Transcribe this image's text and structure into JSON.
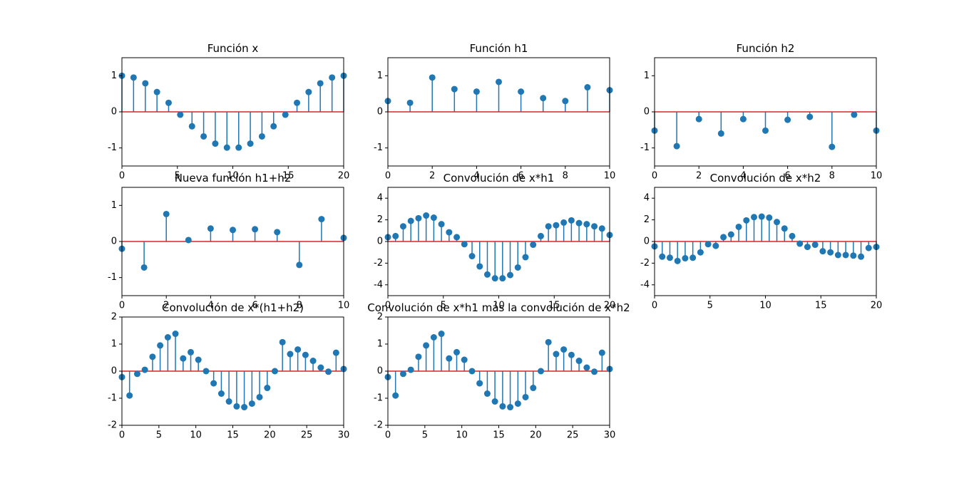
{
  "chart_data": [
    {
      "type": "stem",
      "title": "Función x",
      "color": "#1f77b4",
      "baseline_color": "#d62728",
      "x": [
        0,
        1.05,
        2.11,
        3.16,
        4.21,
        5.26,
        6.32,
        7.37,
        8.42,
        9.47,
        10.53,
        11.58,
        12.63,
        13.68,
        14.74,
        15.79,
        16.84,
        17.89,
        18.95,
        20
      ],
      "values": [
        1,
        0.95,
        0.79,
        0.55,
        0.25,
        -0.08,
        -0.4,
        -0.68,
        -0.88,
        -0.99,
        -0.99,
        -0.88,
        -0.68,
        -0.4,
        -0.08,
        0.25,
        0.55,
        0.79,
        0.95,
        1
      ],
      "xlim": [
        0,
        20
      ],
      "ylim": [
        -1.5,
        1.5
      ],
      "xticks": [
        0,
        5,
        10,
        15,
        20
      ],
      "yticks": [
        -1,
        0,
        1
      ]
    },
    {
      "type": "stem",
      "title": "Función h1",
      "color": "#1f77b4",
      "baseline_color": "#d62728",
      "x": [
        0,
        1,
        2,
        3,
        4,
        5,
        6,
        7,
        8,
        9,
        10
      ],
      "values": [
        0.3,
        0.25,
        0.95,
        0.63,
        0.56,
        0.83,
        0.56,
        0.38,
        0.3,
        0.68,
        0.6
      ],
      "xlim": [
        0,
        10
      ],
      "ylim": [
        -1.5,
        1.5
      ],
      "xticks": [
        0,
        2,
        4,
        6,
        8,
        10
      ],
      "yticks": [
        -1,
        0,
        1
      ]
    },
    {
      "type": "stem",
      "title": "Función h2",
      "color": "#1f77b4",
      "baseline_color": "#d62728",
      "x": [
        0,
        1,
        2,
        3,
        4,
        5,
        6,
        7,
        8,
        9,
        10
      ],
      "values": [
        -0.52,
        -0.95,
        -0.2,
        -0.6,
        -0.2,
        -0.52,
        -0.22,
        -0.14,
        -0.97,
        -0.08,
        -0.52
      ],
      "xlim": [
        0,
        10
      ],
      "ylim": [
        -1.5,
        1.5
      ],
      "xticks": [
        0,
        2,
        4,
        6,
        8,
        10
      ],
      "yticks": [
        -1,
        0,
        1
      ]
    },
    {
      "type": "stem",
      "title": "Nueva función h1+h2",
      "color": "#1f77b4",
      "baseline_color": "#d62728",
      "x": [
        0,
        1,
        2,
        3,
        4,
        5,
        6,
        7,
        8,
        9,
        10
      ],
      "values": [
        -0.2,
        -0.72,
        0.76,
        0.04,
        0.36,
        0.32,
        0.34,
        0.26,
        -0.65,
        0.62,
        0.1
      ],
      "xlim": [
        0,
        10
      ],
      "ylim": [
        -1.5,
        1.5
      ],
      "xticks": [
        0,
        2,
        4,
        6,
        8,
        10
      ],
      "yticks": [
        -1,
        0,
        1
      ]
    },
    {
      "type": "stem",
      "title": "Convolución de x*h1",
      "color": "#1f77b4",
      "baseline_color": "#d62728",
      "x": [
        0,
        0.69,
        1.38,
        2.07,
        2.76,
        3.45,
        4.14,
        4.83,
        5.52,
        6.21,
        6.9,
        7.59,
        8.28,
        8.97,
        9.66,
        10.34,
        11.03,
        11.72,
        12.41,
        13.1,
        13.79,
        14.48,
        15.17,
        15.86,
        16.55,
        17.24,
        17.93,
        18.62,
        19.31,
        20
      ],
      "values": [
        0.4,
        0.5,
        1.4,
        1.9,
        2.15,
        2.4,
        2.2,
        1.6,
        0.85,
        0.4,
        -0.25,
        -1.35,
        -2.3,
        -3.05,
        -3.4,
        -3.4,
        -3.1,
        -2.4,
        -1.45,
        -0.3,
        0.5,
        1.4,
        1.5,
        1.75,
        1.95,
        1.7,
        1.6,
        1.4,
        1.2,
        0.6
      ],
      "xlim": [
        0,
        20
      ],
      "ylim": [
        -5,
        5
      ],
      "xticks": [
        0,
        5,
        10,
        15,
        20
      ],
      "yticks": [
        -4,
        -2,
        0,
        2,
        4
      ]
    },
    {
      "type": "stem",
      "title": "Convolución de x*h2",
      "color": "#1f77b4",
      "baseline_color": "#d62728",
      "x": [
        0,
        0.69,
        1.38,
        2.07,
        2.76,
        3.45,
        4.14,
        4.83,
        5.52,
        6.21,
        6.9,
        7.59,
        8.28,
        8.97,
        9.66,
        10.34,
        11.03,
        11.72,
        12.41,
        13.1,
        13.79,
        14.48,
        15.17,
        15.86,
        16.55,
        17.24,
        17.93,
        18.62,
        19.31,
        20
      ],
      "values": [
        -0.45,
        -1.4,
        -1.5,
        -1.8,
        -1.55,
        -1.5,
        -1.0,
        -0.25,
        -0.4,
        0.4,
        0.65,
        1.35,
        1.95,
        2.25,
        2.3,
        2.2,
        1.8,
        1.2,
        0.5,
        -0.2,
        -0.5,
        -0.3,
        -0.9,
        -1.0,
        -1.25,
        -1.25,
        -1.3,
        -1.4,
        -0.6,
        -0.5
      ],
      "xlim": [
        0,
        20
      ],
      "ylim": [
        -5,
        5
      ],
      "xticks": [
        0,
        5,
        10,
        15,
        20
      ],
      "yticks": [
        -4,
        -2,
        0,
        2,
        4
      ]
    },
    {
      "type": "stem",
      "title": "Convolución de x*(h1+h2)",
      "color": "#1f77b4",
      "baseline_color": "#d62728",
      "x": [
        0,
        1.03,
        2.07,
        3.1,
        4.14,
        5.17,
        6.21,
        7.24,
        8.28,
        9.31,
        10.34,
        11.38,
        12.41,
        13.45,
        14.48,
        15.52,
        16.55,
        17.59,
        18.62,
        19.66,
        20.69,
        21.72,
        22.76,
        23.79,
        24.83,
        25.86,
        26.9,
        27.93,
        28.97,
        30
      ],
      "values": [
        -0.22,
        -0.9,
        -0.1,
        0.05,
        0.53,
        0.95,
        1.25,
        1.38,
        0.47,
        0.7,
        0.42,
        0,
        -0.45,
        -0.83,
        -1.12,
        -1.3,
        -1.33,
        -1.2,
        -0.96,
        -0.62,
        0,
        1.07,
        0.63,
        0.8,
        0.6,
        0.38,
        0.13,
        -0.02,
        0.68,
        0.08
      ],
      "xlim": [
        0,
        30
      ],
      "ylim": [
        -2,
        2
      ],
      "xticks": [
        0,
        5,
        10,
        15,
        20,
        25,
        30
      ],
      "yticks": [
        -2,
        -1,
        0,
        1,
        2
      ]
    },
    {
      "type": "stem",
      "title": "Convolución de x*h1 más la convolución de x*h2",
      "color": "#1f77b4",
      "baseline_color": "#d62728",
      "x": [
        0,
        1.03,
        2.07,
        3.1,
        4.14,
        5.17,
        6.21,
        7.24,
        8.28,
        9.31,
        10.34,
        11.38,
        12.41,
        13.45,
        14.48,
        15.52,
        16.55,
        17.59,
        18.62,
        19.66,
        20.69,
        21.72,
        22.76,
        23.79,
        24.83,
        25.86,
        26.9,
        27.93,
        28.97,
        30
      ],
      "values": [
        -0.22,
        -0.9,
        -0.1,
        0.05,
        0.53,
        0.95,
        1.25,
        1.38,
        0.47,
        0.7,
        0.42,
        0,
        -0.45,
        -0.83,
        -1.12,
        -1.3,
        -1.33,
        -1.2,
        -0.96,
        -0.62,
        0,
        1.07,
        0.63,
        0.8,
        0.6,
        0.38,
        0.13,
        -0.02,
        0.68,
        0.08
      ],
      "xlim": [
        0,
        30
      ],
      "ylim": [
        -2,
        2
      ],
      "xticks": [
        0,
        5,
        10,
        15,
        20,
        25,
        30
      ],
      "yticks": [
        -2,
        -1,
        0,
        1,
        2
      ]
    }
  ]
}
